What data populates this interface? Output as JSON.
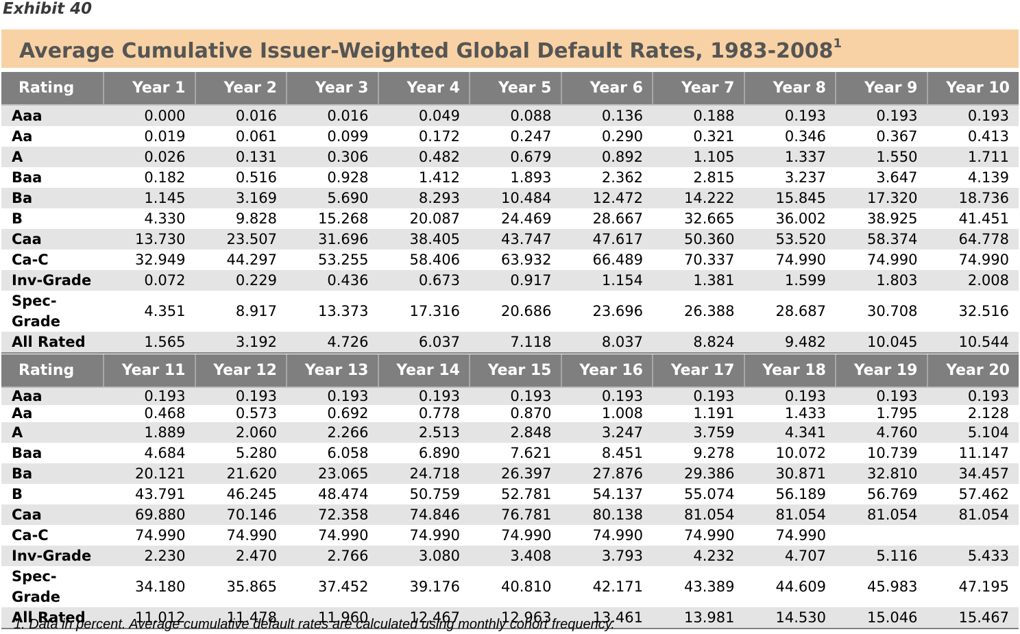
{
  "exhibit_label": "Exhibit 40",
  "title": "Average Cumulative Issuer-Weighted Global Default Rates, 1983-2008",
  "title_superscript": "1",
  "colors": {
    "title_band": "#f8d2a4",
    "header": "#7f7f7f",
    "row_shade": "#e4e4e4",
    "title_text": "#555555"
  },
  "table1": {
    "headers": [
      "Rating",
      "Year 1",
      "Year 2",
      "Year 3",
      "Year 4",
      "Year 5",
      "Year 6",
      "Year 7",
      "Year 8",
      "Year 9",
      "Year 10"
    ],
    "rows": [
      [
        "Aaa",
        "0.000",
        "0.016",
        "0.016",
        "0.049",
        "0.088",
        "0.136",
        "0.188",
        "0.193",
        "0.193",
        "0.193"
      ],
      [
        "Aa",
        "0.019",
        "0.061",
        "0.099",
        "0.172",
        "0.247",
        "0.290",
        "0.321",
        "0.346",
        "0.367",
        "0.413"
      ],
      [
        "A",
        "0.026",
        "0.131",
        "0.306",
        "0.482",
        "0.679",
        "0.892",
        "1.105",
        "1.337",
        "1.550",
        "1.711"
      ],
      [
        "Baa",
        "0.182",
        "0.516",
        "0.928",
        "1.412",
        "1.893",
        "2.362",
        "2.815",
        "3.237",
        "3.647",
        "4.139"
      ],
      [
        "Ba",
        "1.145",
        "3.169",
        "5.690",
        "8.293",
        "10.484",
        "12.472",
        "14.222",
        "15.845",
        "17.320",
        "18.736"
      ],
      [
        "B",
        "4.330",
        "9.828",
        "15.268",
        "20.087",
        "24.469",
        "28.667",
        "32.665",
        "36.002",
        "38.925",
        "41.451"
      ],
      [
        "Caa",
        "13.730",
        "23.507",
        "31.696",
        "38.405",
        "43.747",
        "47.617",
        "50.360",
        "53.520",
        "58.374",
        "64.778"
      ],
      [
        "Ca-C",
        "32.949",
        "44.297",
        "53.255",
        "58.406",
        "63.932",
        "66.489",
        "70.337",
        "74.990",
        "74.990",
        "74.990"
      ],
      [
        "Inv-Grade",
        "0.072",
        "0.229",
        "0.436",
        "0.673",
        "0.917",
        "1.154",
        "1.381",
        "1.599",
        "1.803",
        "2.008"
      ],
      [
        "Spec-Grade",
        "4.351",
        "8.917",
        "13.373",
        "17.316",
        "20.686",
        "23.696",
        "26.388",
        "28.687",
        "30.708",
        "32.516"
      ],
      [
        "All Rated",
        "1.565",
        "3.192",
        "4.726",
        "6.037",
        "7.118",
        "8.037",
        "8.824",
        "9.482",
        "10.045",
        "10.544"
      ]
    ]
  },
  "table2": {
    "headers": [
      "Rating",
      "Year 11",
      "Year 12",
      "Year 13",
      "Year 14",
      "Year 15",
      "Year 16",
      "Year 17",
      "Year 18",
      "Year 19",
      "Year 20"
    ],
    "rows": [
      [
        "Aaa",
        "0.193",
        "0.193",
        "0.193",
        "0.193",
        "0.193",
        "0.193",
        "0.193",
        "0.193",
        "0.193",
        "0.193"
      ],
      [
        "Aa",
        "0.468",
        "0.573",
        "0.692",
        "0.778",
        "0.870",
        "1.008",
        "1.191",
        "1.433",
        "1.795",
        "2.128"
      ],
      [
        "A",
        "1.889",
        "2.060",
        "2.266",
        "2.513",
        "2.848",
        "3.247",
        "3.759",
        "4.341",
        "4.760",
        "5.104"
      ],
      [
        "Baa",
        "4.684",
        "5.280",
        "6.058",
        "6.890",
        "7.621",
        "8.451",
        "9.278",
        "10.072",
        "10.739",
        "11.147"
      ],
      [
        "Ba",
        "20.121",
        "21.620",
        "23.065",
        "24.718",
        "26.397",
        "27.876",
        "29.386",
        "30.871",
        "32.810",
        "34.457"
      ],
      [
        "B",
        "43.791",
        "46.245",
        "48.474",
        "50.759",
        "52.781",
        "54.137",
        "55.074",
        "56.189",
        "56.769",
        "57.462"
      ],
      [
        "Caa",
        "69.880",
        "70.146",
        "72.358",
        "74.846",
        "76.781",
        "80.138",
        "81.054",
        "81.054",
        "81.054",
        "81.054"
      ],
      [
        "Ca-C",
        "74.990",
        "74.990",
        "74.990",
        "74.990",
        "74.990",
        "74.990",
        "74.990",
        "74.990",
        "",
        ""
      ],
      [
        "Inv-Grade",
        "2.230",
        "2.470",
        "2.766",
        "3.080",
        "3.408",
        "3.793",
        "4.232",
        "4.707",
        "5.116",
        "5.433"
      ],
      [
        "Spec-Grade",
        "34.180",
        "35.865",
        "37.452",
        "39.176",
        "40.810",
        "42.171",
        "43.389",
        "44.609",
        "45.983",
        "47.195"
      ],
      [
        "All Rated",
        "11.012",
        "11.478",
        "11.960",
        "12.467",
        "12.963",
        "13.461",
        "13.981",
        "14.530",
        "15.046",
        "15.467"
      ]
    ]
  },
  "footnote": "1. Data in percent. Average cumulative default rates are calculated using monthly cohort frequency."
}
